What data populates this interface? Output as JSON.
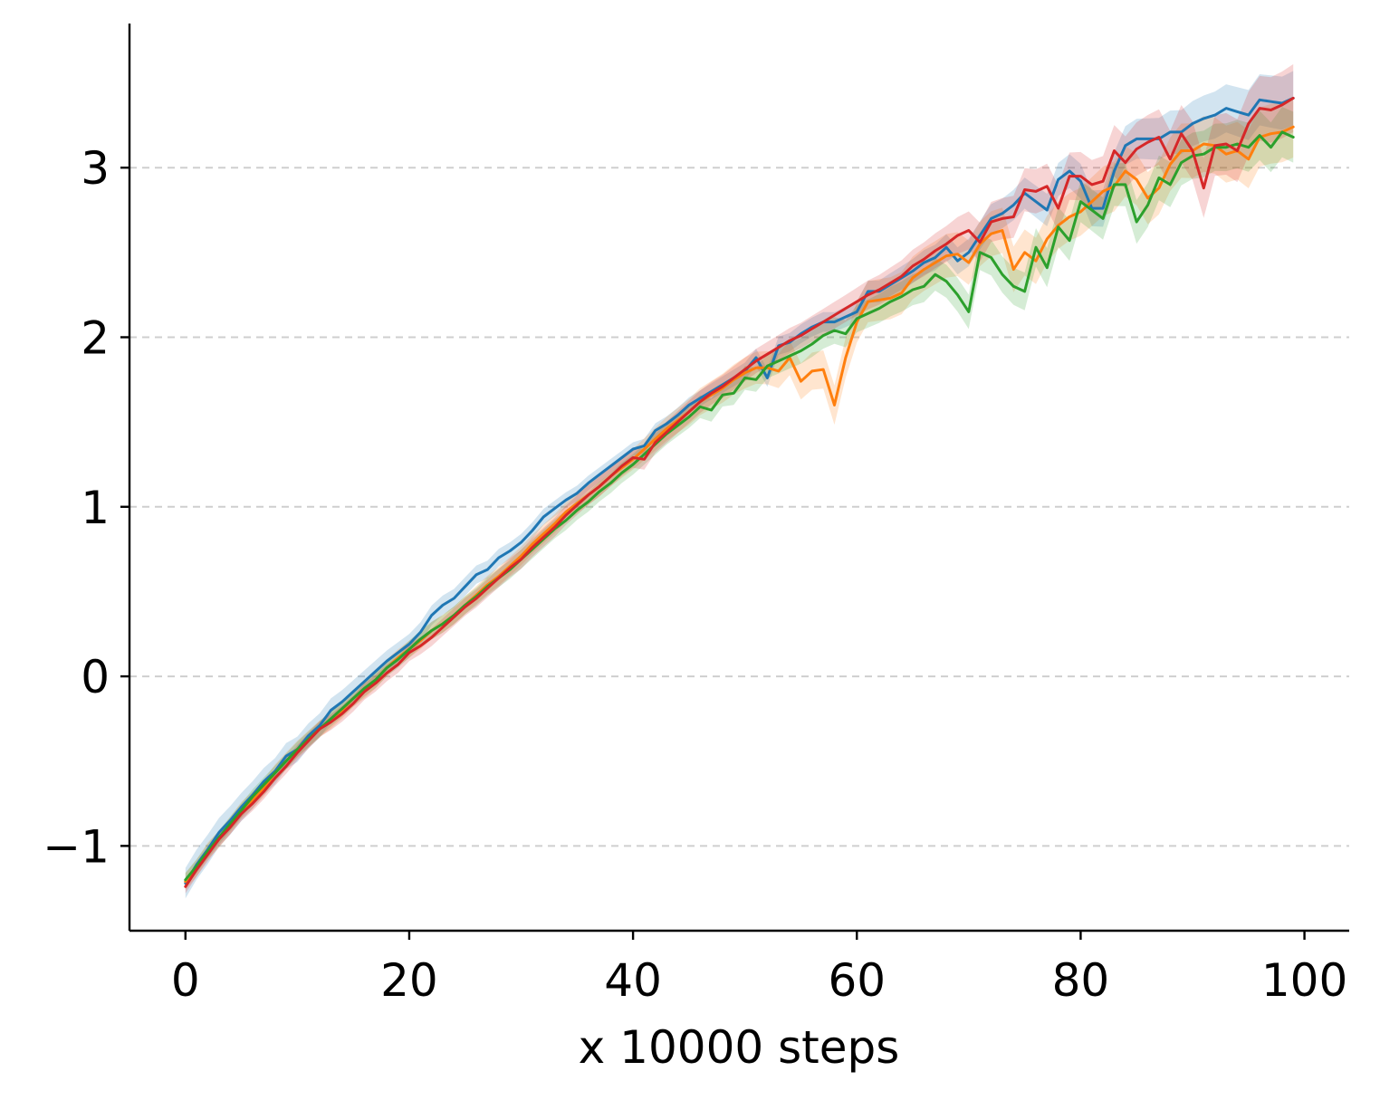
{
  "chart_data": {
    "type": "line",
    "title": "",
    "xlabel": "x 10000 steps",
    "ylabel": "",
    "xlim": [
      -5,
      104
    ],
    "ylim": [
      -1.5,
      3.85
    ],
    "x_ticks": [
      0,
      20,
      40,
      60,
      80,
      100
    ],
    "y_ticks": [
      -1,
      0,
      1,
      2,
      3
    ],
    "y_tick_labels": [
      "−1",
      "0",
      "1",
      "2",
      "3"
    ],
    "x_tick_labels": [
      "0",
      "20",
      "40",
      "60",
      "80",
      "100"
    ],
    "grid": "horizontal dashed",
    "legend": "none",
    "band_opacity": 0.2,
    "series": [
      {
        "color": "#1f77b4",
        "band": [
          0.09,
          0.06,
          0.04,
          0.06,
          0.1,
          0.16
        ],
        "values": [
          -1.22,
          -1.11,
          -1.02,
          -0.92,
          -0.85,
          -0.77,
          -0.7,
          -0.62,
          -0.56,
          -0.47,
          -0.43,
          -0.35,
          -0.29,
          -0.2,
          -0.15,
          -0.09,
          -0.03,
          0.03,
          0.09,
          0.14,
          0.19,
          0.26,
          0.36,
          0.42,
          0.46,
          0.53,
          0.6,
          0.63,
          0.7,
          0.74,
          0.79,
          0.86,
          0.94,
          0.99,
          1.04,
          1.08,
          1.14,
          1.19,
          1.24,
          1.29,
          1.34,
          1.36,
          1.45,
          1.49,
          1.54,
          1.6,
          1.64,
          1.68,
          1.72,
          1.76,
          1.8,
          1.88,
          1.76,
          1.95,
          1.97,
          2.02,
          2.06,
          2.09,
          2.09,
          2.12,
          2.15,
          2.27,
          2.27,
          2.31,
          2.35,
          2.39,
          2.44,
          2.47,
          2.53,
          2.45,
          2.5,
          2.6,
          2.7,
          2.73,
          2.78,
          2.85,
          2.8,
          2.75,
          2.93,
          2.98,
          2.92,
          2.76,
          2.76,
          2.98,
          3.13,
          3.17,
          3.17,
          3.17,
          3.21,
          3.21,
          3.26,
          3.29,
          3.31,
          3.35,
          3.33,
          3.31,
          3.4,
          3.39,
          3.38,
          3.41
        ]
      },
      {
        "color": "#ff7f0e",
        "band": [
          0.05,
          0.05,
          0.06,
          0.12,
          0.14,
          0.18
        ],
        "values": [
          -1.21,
          -1.13,
          -1.03,
          -0.96,
          -0.88,
          -0.79,
          -0.73,
          -0.66,
          -0.57,
          -0.5,
          -0.43,
          -0.37,
          -0.31,
          -0.26,
          -0.2,
          -0.13,
          -0.08,
          -0.02,
          0.05,
          0.11,
          0.16,
          0.21,
          0.27,
          0.31,
          0.36,
          0.42,
          0.48,
          0.54,
          0.59,
          0.65,
          0.71,
          0.78,
          0.84,
          0.9,
          0.97,
          1.02,
          1.07,
          1.12,
          1.18,
          1.23,
          1.28,
          1.34,
          1.4,
          1.46,
          1.51,
          1.56,
          1.62,
          1.66,
          1.7,
          1.75,
          1.79,
          1.82,
          1.82,
          1.8,
          1.88,
          1.74,
          1.8,
          1.81,
          1.6,
          1.88,
          2.09,
          2.21,
          2.22,
          2.23,
          2.26,
          2.35,
          2.4,
          2.44,
          2.48,
          2.49,
          2.44,
          2.55,
          2.61,
          2.63,
          2.4,
          2.5,
          2.45,
          2.58,
          2.66,
          2.71,
          2.74,
          2.8,
          2.86,
          2.89,
          2.98,
          2.93,
          2.82,
          2.88,
          3.02,
          3.1,
          3.1,
          3.14,
          3.13,
          3.08,
          3.1,
          3.05,
          3.18,
          3.2,
          3.21,
          3.24
        ]
      },
      {
        "color": "#2ca02c",
        "band": [
          0.04,
          0.05,
          0.06,
          0.08,
          0.12,
          0.15
        ],
        "values": [
          -1.2,
          -1.12,
          -1.03,
          -0.95,
          -0.87,
          -0.79,
          -0.71,
          -0.64,
          -0.57,
          -0.5,
          -0.43,
          -0.37,
          -0.31,
          -0.25,
          -0.19,
          -0.13,
          -0.07,
          -0.02,
          0.05,
          0.1,
          0.16,
          0.22,
          0.27,
          0.31,
          0.36,
          0.42,
          0.47,
          0.53,
          0.58,
          0.63,
          0.69,
          0.75,
          0.81,
          0.87,
          0.92,
          0.98,
          1.03,
          1.09,
          1.14,
          1.2,
          1.25,
          1.31,
          1.37,
          1.43,
          1.48,
          1.53,
          1.59,
          1.57,
          1.66,
          1.67,
          1.76,
          1.75,
          1.83,
          1.86,
          1.89,
          1.92,
          1.96,
          2.01,
          2.04,
          2.02,
          2.11,
          2.14,
          2.17,
          2.21,
          2.24,
          2.28,
          2.3,
          2.37,
          2.33,
          2.25,
          2.15,
          2.5,
          2.47,
          2.37,
          2.3,
          2.27,
          2.53,
          2.41,
          2.65,
          2.57,
          2.8,
          2.75,
          2.7,
          2.9,
          2.9,
          2.68,
          2.78,
          2.94,
          2.9,
          3.03,
          3.07,
          3.08,
          3.12,
          3.12,
          3.14,
          3.12,
          3.19,
          3.12,
          3.21,
          3.18
        ]
      },
      {
        "color": "#d62728",
        "band": [
          0.04,
          0.05,
          0.06,
          0.08,
          0.14,
          0.2
        ],
        "values": [
          -1.24,
          -1.14,
          -1.05,
          -0.96,
          -0.89,
          -0.81,
          -0.75,
          -0.68,
          -0.6,
          -0.53,
          -0.45,
          -0.38,
          -0.31,
          -0.27,
          -0.22,
          -0.16,
          -0.09,
          -0.04,
          0.02,
          0.07,
          0.14,
          0.18,
          0.23,
          0.29,
          0.35,
          0.41,
          0.46,
          0.52,
          0.58,
          0.64,
          0.69,
          0.76,
          0.82,
          0.88,
          0.95,
          1.01,
          1.07,
          1.12,
          1.18,
          1.24,
          1.29,
          1.28,
          1.38,
          1.44,
          1.5,
          1.56,
          1.62,
          1.67,
          1.71,
          1.76,
          1.81,
          1.86,
          1.9,
          1.94,
          1.98,
          2.01,
          2.05,
          2.09,
          2.13,
          2.17,
          2.21,
          2.25,
          2.28,
          2.32,
          2.36,
          2.42,
          2.46,
          2.51,
          2.55,
          2.6,
          2.63,
          2.56,
          2.68,
          2.7,
          2.71,
          2.87,
          2.86,
          2.89,
          2.76,
          2.95,
          2.95,
          2.9,
          2.92,
          3.1,
          3.03,
          3.11,
          3.15,
          3.18,
          3.05,
          3.2,
          3.1,
          2.88,
          3.13,
          3.14,
          3.1,
          3.26,
          3.35,
          3.34,
          3.37,
          3.41
        ]
      }
    ]
  }
}
